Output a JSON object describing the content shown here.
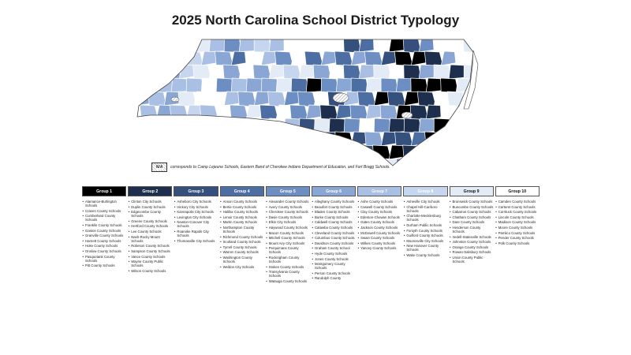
{
  "title": "2025 North Carolina School District Typology",
  "legend_note": {
    "swatch_label": "N/A",
    "text": "corresponds to Camp Lejeune Schools, Eastern Band of Cherokee Indians Department of Education, and Fort Bragg Schools."
  },
  "colors": {
    "group_1": "#000000",
    "group_2": "#1d2f4c",
    "group_3": "#35507d",
    "group_4": "#4c6ea3",
    "group_5": "#6d8ec3",
    "group_6": "#8aa6d4",
    "group_7": "#a9bfe3",
    "group_8": "#c7d6ef",
    "group_9": "#e3ebf7",
    "group_10": "#ffffff",
    "na": "#bbbbbb",
    "border": "#555555"
  },
  "groups": [
    {
      "label": "Group 1",
      "color": "#000000",
      "text_color": "#ffffff",
      "schools": [
        "Alamance-Burlington Schools",
        "Craven County Schools",
        "Cumberland County Schools",
        "Franklin County Schools",
        "Gaston County Schools",
        "Granville County Schools",
        "Harnett County Schools",
        "Hoke County Schools",
        "Onslow County Schools",
        "Pasquotank County Schools",
        "Pitt County Schools"
      ]
    },
    {
      "label": "Group 2",
      "color": "#1d2f4c",
      "text_color": "#ffffff",
      "schools": [
        "Clinton City Schools",
        "Duplin County Schools",
        "Edgecombe County Schools",
        "Greene County Schools",
        "Hertford County Schools",
        "Lee County Schools",
        "Nash-Rocky Mount Schools",
        "Robeson County Schools",
        "Sampson County Schools",
        "Vance County Schools",
        "Wayne County Public Schools",
        "Wilson County Schools"
      ]
    },
    {
      "label": "Group 3",
      "color": "#35507d",
      "text_color": "#ffffff",
      "schools": [
        "Asheboro City Schools",
        "Hickory City Schools",
        "Kannapolis City Schools",
        "Lexington City Schools",
        "Newton-Conover City Schools",
        "Roanoke Rapids City Schools",
        "Thomasville City Schools"
      ]
    },
    {
      "label": "Group 4",
      "color": "#4c6ea3",
      "text_color": "#ffffff",
      "schools": [
        "Anson County Schools",
        "Bertie County Schools",
        "Halifax County Schools",
        "Lenoir County Schools",
        "Martin County Schools",
        "Northampton County Schools",
        "Richmond County Schools",
        "Scotland County Schools",
        "Tyrrell County Schools",
        "Warren County Schools",
        "Washington County Schools",
        "Weldon City Schools"
      ]
    },
    {
      "label": "Group 5",
      "color": "#6d8ec3",
      "text_color": "#ffffff",
      "schools": [
        "Alexander County Schools",
        "Avery County Schools",
        "Cherokee County Schools",
        "Davie County Schools",
        "Elkin City Schools",
        "Haywood County Schools",
        "Macon County Schools",
        "Mitchell County Schools",
        "Mount Airy City Schools",
        "Perquimans County Schools",
        "Rockingham County Schools",
        "Stokes County Schools",
        "Transylvania County Schools",
        "Watauga County Schools"
      ]
    },
    {
      "label": "Group 6",
      "color": "#8aa6d4",
      "text_color": "#ffffff",
      "schools": [
        "Alleghany County Schools",
        "Beaufort County Schools",
        "Bladen County Schools",
        "Burke County Schools",
        "Caldwell County Schools",
        "Catawba County Schools",
        "Cleveland County Schools",
        "Columbus County Schools",
        "Davidson County Schools",
        "Graham County School",
        "Hyde County Schools",
        "Jones County Schools",
        "Montgomery County Schools",
        "Person County Schools",
        "Randolph County"
      ]
    },
    {
      "label": "Group 7",
      "color": "#a9bfe3",
      "text_color": "#ffffff",
      "schools": [
        "Ashe County Schools",
        "Caswell County Schools",
        "Clay County Schools",
        "Edenton-Chowan Schools",
        "Gates County Schools",
        "Jackson County Schools",
        "McDowell County Schools",
        "Swain County Schools",
        "Wilkes County Schools",
        "Yancey County Schools"
      ]
    },
    {
      "label": "Group 8",
      "color": "#c7d6ef",
      "text_color": "#ffffff",
      "schools": [
        "Asheville City Schools",
        "Chapel Hill-Carrboro Schools",
        "Charlotte-Mecklenburg Schools",
        "Durham Public Schools",
        "Forsyth County Schools",
        "Guilford County Schools",
        "Mooresville City Schools",
        "New Hanover County Schools",
        "Wake County Schools"
      ]
    },
    {
      "label": "Group 9",
      "color": "#e3ebf7",
      "text_color": "#111111",
      "schools": [
        "Brunswick County Schools",
        "Buncombe County Schools",
        "Cabarrus County Schools",
        "Chatham County Schools",
        "Dare County Schools",
        "Henderson County Schools",
        "Iredell-Statesville Schools",
        "Johnston County Schools",
        "Orange County Schools",
        "Rowan-Salisbury Schools",
        "Union County Public Schools"
      ]
    },
    {
      "label": "Group 10",
      "color": "#ffffff",
      "text_color": "#111111",
      "schools": [
        "Camden County Schools",
        "Carteret County Schools",
        "Currituck County Schools",
        "Lincoln County Schools",
        "Madison County Schools",
        "Moore County Schools",
        "Pamlico County Schools",
        "Pender County Schools",
        "Polk County Schools"
      ]
    }
  ]
}
